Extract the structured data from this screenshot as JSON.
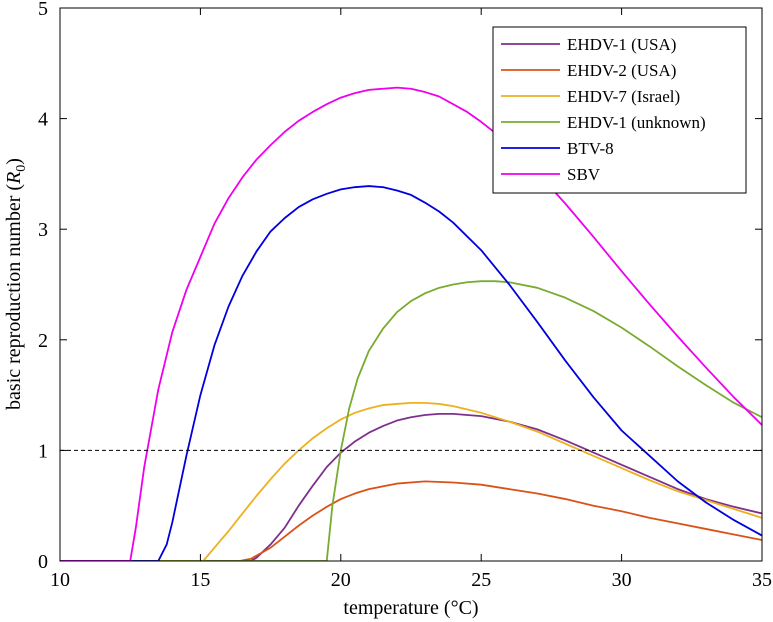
{
  "chart_data": {
    "type": "line",
    "title": "",
    "xlabel": "temperature (°C)",
    "ylabel_prefix": "basic reproduction number (",
    "ylabel_symbol": "R",
    "ylabel_subscript": "0",
    "ylabel_suffix": ")",
    "xlim": [
      10,
      35
    ],
    "ylim": [
      0,
      5
    ],
    "xticks": [
      10,
      15,
      20,
      25,
      30,
      35
    ],
    "yticks": [
      0,
      1,
      2,
      3,
      4,
      5
    ],
    "grid": false,
    "legend_position": "top-right",
    "reference_line": {
      "y": 1,
      "style": "dashed",
      "color": "#000000"
    },
    "series": [
      {
        "name": "EHDV-1 (USA)",
        "color": "#7E2F8E",
        "x": [
          10,
          16.8,
          17,
          17.5,
          18,
          18.5,
          19,
          19.5,
          20,
          20.5,
          21,
          21.5,
          22,
          22.5,
          23,
          23.5,
          24,
          25,
          26,
          27,
          28,
          29,
          30,
          31,
          32,
          33,
          34,
          35
        ],
        "y": [
          0,
          0,
          0.03,
          0.15,
          0.3,
          0.5,
          0.68,
          0.85,
          0.98,
          1.08,
          1.16,
          1.22,
          1.27,
          1.3,
          1.32,
          1.33,
          1.33,
          1.31,
          1.26,
          1.19,
          1.09,
          0.98,
          0.87,
          0.76,
          0.65,
          0.56,
          0.49,
          0.43
        ]
      },
      {
        "name": "EHDV-2 (USA)",
        "color": "#D95319",
        "x": [
          10,
          16.4,
          16.8,
          17.5,
          18,
          18.5,
          19,
          19.5,
          20,
          20.5,
          21,
          22,
          23,
          24,
          25,
          26,
          27,
          28,
          29,
          30,
          31,
          32,
          33,
          34,
          35
        ],
        "y": [
          0,
          0,
          0.02,
          0.12,
          0.22,
          0.32,
          0.41,
          0.49,
          0.56,
          0.61,
          0.65,
          0.7,
          0.72,
          0.71,
          0.69,
          0.65,
          0.61,
          0.56,
          0.5,
          0.45,
          0.39,
          0.34,
          0.29,
          0.24,
          0.19
        ]
      },
      {
        "name": "EHDV-7 (Israel)",
        "color": "#EDB120",
        "x": [
          10,
          15.1,
          15.5,
          16,
          16.5,
          17,
          17.5,
          18,
          18.5,
          19,
          19.5,
          20,
          20.5,
          21,
          21.5,
          22,
          22.5,
          23,
          23.5,
          24,
          25,
          26,
          27,
          28,
          29,
          30,
          31,
          32,
          33,
          34,
          35
        ],
        "y": [
          0,
          0,
          0.12,
          0.27,
          0.43,
          0.59,
          0.74,
          0.88,
          1.0,
          1.11,
          1.2,
          1.28,
          1.34,
          1.38,
          1.41,
          1.42,
          1.43,
          1.43,
          1.42,
          1.4,
          1.34,
          1.26,
          1.17,
          1.06,
          0.95,
          0.84,
          0.73,
          0.63,
          0.55,
          0.47,
          0.39
        ]
      },
      {
        "name": "EHDV-1 (unknown)",
        "color": "#77AC30",
        "x": [
          10,
          19.5,
          19.7,
          20,
          20.3,
          20.6,
          21,
          21.5,
          22,
          22.5,
          23,
          23.5,
          24,
          24.5,
          25,
          25.5,
          26,
          27,
          28,
          29,
          30,
          31,
          32,
          33,
          34,
          35
        ],
        "y": [
          0,
          0,
          0.5,
          1.0,
          1.38,
          1.65,
          1.9,
          2.1,
          2.25,
          2.35,
          2.42,
          2.47,
          2.5,
          2.52,
          2.53,
          2.53,
          2.52,
          2.47,
          2.38,
          2.26,
          2.11,
          1.94,
          1.76,
          1.59,
          1.43,
          1.3
        ]
      },
      {
        "name": "BTV-8",
        "color": "#0000DD",
        "x": [
          10,
          13.5,
          13.8,
          14,
          14.5,
          15,
          15.5,
          16,
          16.5,
          17,
          17.5,
          18,
          18.5,
          19,
          19.5,
          20,
          20.5,
          21,
          21.5,
          22,
          22.5,
          23,
          23.5,
          24,
          25,
          26,
          27,
          28,
          29,
          30,
          31,
          32,
          33,
          34,
          35
        ],
        "y": [
          0,
          0,
          0.15,
          0.35,
          0.95,
          1.5,
          1.95,
          2.3,
          2.58,
          2.8,
          2.98,
          3.1,
          3.2,
          3.27,
          3.32,
          3.36,
          3.38,
          3.39,
          3.38,
          3.35,
          3.31,
          3.24,
          3.16,
          3.06,
          2.81,
          2.5,
          2.16,
          1.81,
          1.48,
          1.18,
          0.95,
          0.72,
          0.53,
          0.37,
          0.23
        ]
      },
      {
        "name": "SBV",
        "color": "#EE00EE",
        "x": [
          10,
          12.5,
          12.7,
          13,
          13.5,
          14,
          14.5,
          15,
          15.5,
          16,
          16.5,
          17,
          17.5,
          18,
          18.5,
          19,
          19.5,
          20,
          20.5,
          21,
          21.5,
          22,
          22.5,
          23,
          23.5,
          24,
          24.5,
          25,
          25.5,
          26,
          27,
          28,
          29,
          30,
          31,
          32,
          33,
          34,
          35
        ],
        "y": [
          0,
          0,
          0.3,
          0.85,
          1.55,
          2.07,
          2.45,
          2.75,
          3.05,
          3.28,
          3.47,
          3.63,
          3.76,
          3.88,
          3.98,
          4.06,
          4.13,
          4.19,
          4.23,
          4.26,
          4.27,
          4.28,
          4.27,
          4.24,
          4.2,
          4.13,
          4.06,
          3.97,
          3.87,
          3.76,
          3.51,
          3.23,
          2.93,
          2.62,
          2.32,
          2.03,
          1.75,
          1.48,
          1.23
        ]
      }
    ]
  }
}
